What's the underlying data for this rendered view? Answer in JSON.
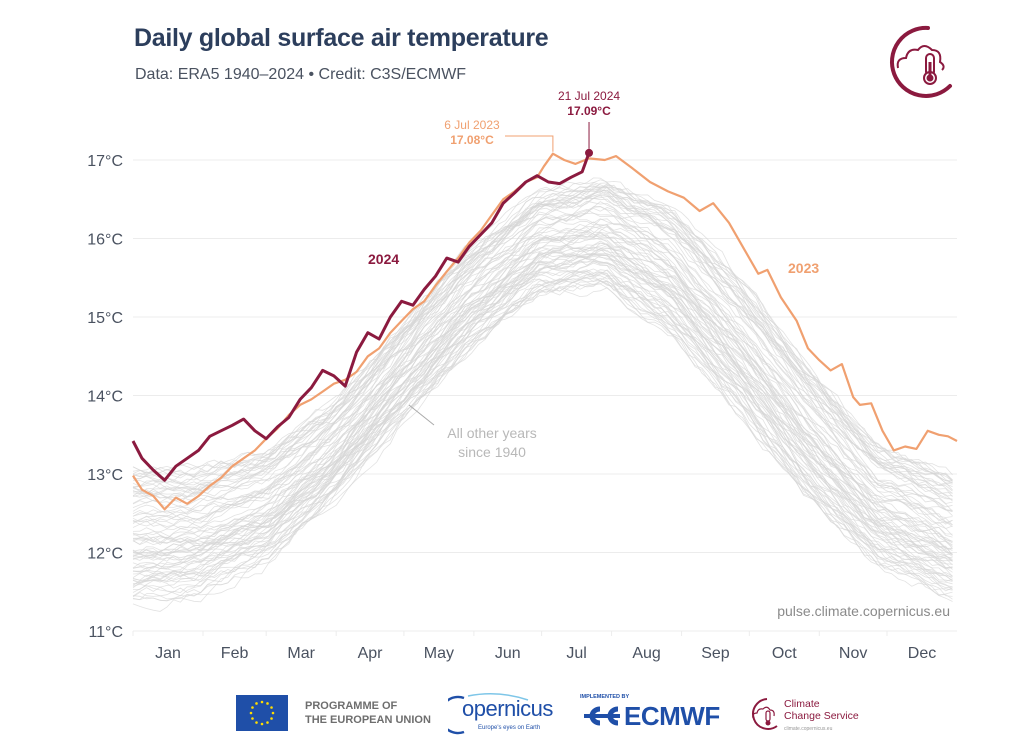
{
  "header": {
    "title": "Daily global surface air temperature",
    "subtitle": "Data: ERA5 1940–2024 • Credit: C3S/ECMWF",
    "logo_icon": "cloud-thermometer-icon"
  },
  "colors": {
    "title": "#2c3e5c",
    "y2024": "#8b1a3f",
    "y2023": "#f0a070",
    "others": "#d6d6d6",
    "grid": "#ececec",
    "axis_text": "#4a5260",
    "eu_blue": "#1f4fa8"
  },
  "chart_data": {
    "type": "line",
    "title": "Daily global surface air temperature",
    "xlabel": "",
    "ylabel": "",
    "ylim": [
      11,
      17
    ],
    "yticks": [
      11,
      12,
      13,
      14,
      15,
      16,
      17
    ],
    "ytick_labels": [
      "11°C",
      "12°C",
      "13°C",
      "14°C",
      "15°C",
      "16°C",
      "17°C"
    ],
    "xlim": [
      1,
      366
    ],
    "categories": [
      "Jan",
      "Feb",
      "Mar",
      "Apr",
      "May",
      "Jun",
      "Jul",
      "Aug",
      "Sep",
      "Oct",
      "Nov",
      "Dec"
    ],
    "grid": true,
    "legend": "inline-labels",
    "series": [
      {
        "name": "2024",
        "label": "2024",
        "points": [
          [
            1,
            13.42
          ],
          [
            5,
            13.2
          ],
          [
            10,
            13.05
          ],
          [
            15,
            12.92
          ],
          [
            20,
            13.1
          ],
          [
            25,
            13.2
          ],
          [
            30,
            13.3
          ],
          [
            35,
            13.48
          ],
          [
            40,
            13.55
          ],
          [
            45,
            13.62
          ],
          [
            50,
            13.7
          ],
          [
            55,
            13.55
          ],
          [
            60,
            13.45
          ],
          [
            65,
            13.6
          ],
          [
            70,
            13.72
          ],
          [
            75,
            13.95
          ],
          [
            80,
            14.1
          ],
          [
            85,
            14.32
          ],
          [
            90,
            14.25
          ],
          [
            95,
            14.12
          ],
          [
            100,
            14.55
          ],
          [
            105,
            14.8
          ],
          [
            110,
            14.72
          ],
          [
            115,
            15.0
          ],
          [
            120,
            15.2
          ],
          [
            125,
            15.15
          ],
          [
            130,
            15.35
          ],
          [
            135,
            15.52
          ],
          [
            140,
            15.75
          ],
          [
            145,
            15.7
          ],
          [
            150,
            15.9
          ],
          [
            155,
            16.05
          ],
          [
            160,
            16.2
          ],
          [
            165,
            16.45
          ],
          [
            170,
            16.58
          ],
          [
            175,
            16.72
          ],
          [
            180,
            16.8
          ],
          [
            185,
            16.72
          ],
          [
            190,
            16.7
          ],
          [
            195,
            16.78
          ],
          [
            200,
            16.85
          ],
          [
            203,
            17.09
          ]
        ]
      },
      {
        "name": "2023",
        "label": "2023",
        "points": [
          [
            1,
            12.98
          ],
          [
            5,
            12.8
          ],
          [
            10,
            12.72
          ],
          [
            15,
            12.55
          ],
          [
            20,
            12.7
          ],
          [
            25,
            12.62
          ],
          [
            30,
            12.72
          ],
          [
            35,
            12.85
          ],
          [
            40,
            12.95
          ],
          [
            45,
            13.1
          ],
          [
            50,
            13.2
          ],
          [
            55,
            13.3
          ],
          [
            60,
            13.45
          ],
          [
            65,
            13.58
          ],
          [
            70,
            13.75
          ],
          [
            75,
            13.88
          ],
          [
            80,
            13.95
          ],
          [
            85,
            14.05
          ],
          [
            90,
            14.15
          ],
          [
            95,
            14.2
          ],
          [
            100,
            14.3
          ],
          [
            105,
            14.5
          ],
          [
            110,
            14.6
          ],
          [
            115,
            14.8
          ],
          [
            120,
            14.95
          ],
          [
            125,
            15.1
          ],
          [
            130,
            15.2
          ],
          [
            135,
            15.4
          ],
          [
            140,
            15.58
          ],
          [
            145,
            15.75
          ],
          [
            150,
            15.95
          ],
          [
            155,
            16.1
          ],
          [
            160,
            16.3
          ],
          [
            165,
            16.5
          ],
          [
            170,
            16.6
          ],
          [
            175,
            16.72
          ],
          [
            180,
            16.78
          ],
          [
            183,
            16.92
          ],
          [
            187,
            17.08
          ],
          [
            192,
            17.0
          ],
          [
            197,
            16.95
          ],
          [
            203,
            17.02
          ],
          [
            210,
            17.0
          ],
          [
            215,
            17.05
          ],
          [
            222,
            16.9
          ],
          [
            230,
            16.72
          ],
          [
            238,
            16.6
          ],
          [
            245,
            16.52
          ],
          [
            252,
            16.35
          ],
          [
            258,
            16.45
          ],
          [
            265,
            16.2
          ],
          [
            272,
            15.85
          ],
          [
            278,
            15.55
          ],
          [
            282,
            15.6
          ],
          [
            288,
            15.25
          ],
          [
            295,
            14.95
          ],
          [
            300,
            14.6
          ],
          [
            305,
            14.45
          ],
          [
            310,
            14.32
          ],
          [
            315,
            14.4
          ],
          [
            320,
            13.98
          ],
          [
            323,
            13.88
          ],
          [
            328,
            13.9
          ],
          [
            333,
            13.55
          ],
          [
            338,
            13.3
          ],
          [
            343,
            13.35
          ],
          [
            348,
            13.32
          ],
          [
            353,
            13.55
          ],
          [
            358,
            13.5
          ],
          [
            362,
            13.48
          ],
          [
            366,
            13.42
          ]
        ]
      },
      {
        "name": "All other years since 1940",
        "label": "All other years\nsince 1940",
        "envelope_low": [
          [
            1,
            11.4
          ],
          [
            30,
            11.5
          ],
          [
            60,
            11.9
          ],
          [
            90,
            12.7
          ],
          [
            120,
            13.7
          ],
          [
            150,
            14.6
          ],
          [
            180,
            15.3
          ],
          [
            210,
            15.4
          ],
          [
            240,
            14.8
          ],
          [
            270,
            13.8
          ],
          [
            300,
            12.7
          ],
          [
            330,
            11.9
          ],
          [
            366,
            11.4
          ]
        ],
        "envelope_high": [
          [
            1,
            13.1
          ],
          [
            30,
            13.1
          ],
          [
            60,
            13.3
          ],
          [
            90,
            13.9
          ],
          [
            120,
            14.9
          ],
          [
            150,
            15.9
          ],
          [
            180,
            16.6
          ],
          [
            210,
            16.8
          ],
          [
            240,
            16.4
          ],
          [
            270,
            15.5
          ],
          [
            300,
            14.4
          ],
          [
            330,
            13.4
          ],
          [
            366,
            13.0
          ]
        ]
      }
    ],
    "annotations": [
      {
        "text_date": "21 Jul 2024",
        "text_value": "17.09°C",
        "series": "2024",
        "day": 203,
        "value": 17.09
      },
      {
        "text_date": "6 Jul 2023",
        "text_value": "17.08°C",
        "series": "2023",
        "day": 187,
        "value": 17.08
      }
    ],
    "source_text": "pulse.climate.copernicus.eu"
  },
  "footer": {
    "eu_line1": "PROGRAMME OF",
    "eu_line2": "THE EUROPEAN UNION",
    "copernicus": "opernicus",
    "copernicus_c": "C",
    "copernicus_tag": "Europe's eyes on Earth",
    "implemented_by": "IMPLEMENTED BY",
    "ecmwf": "ECMWF",
    "ccs_line1": "Climate",
    "ccs_line2": "Change Service",
    "ccs_url": "climate.copernicus.eu"
  }
}
